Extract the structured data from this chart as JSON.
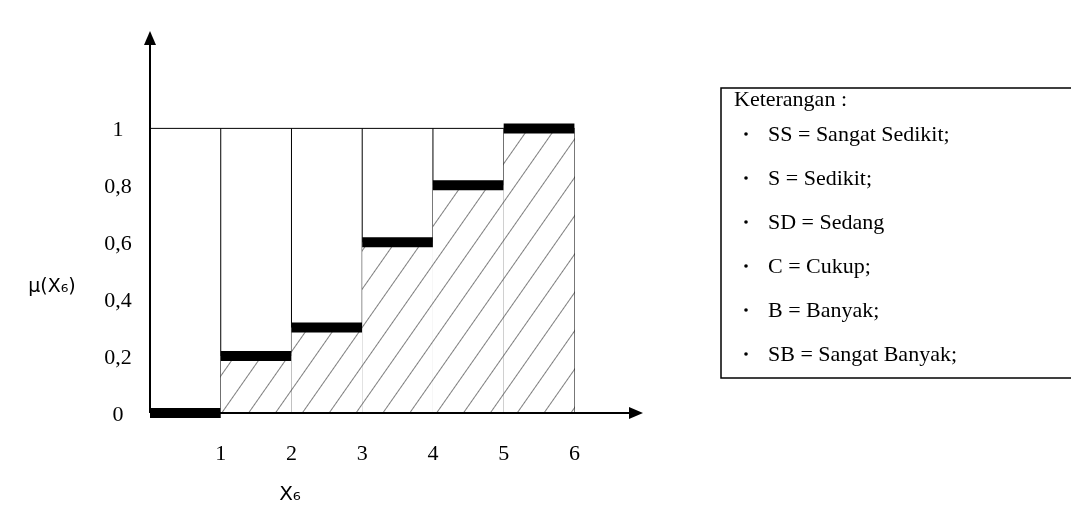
{
  "chart_data": {
    "type": "histogram",
    "xlabel": "X₆",
    "ylabel": "μ(X₆)",
    "bins": [
      0,
      1,
      2,
      3,
      4,
      5,
      6
    ],
    "values": [
      0,
      0.2,
      0.3,
      0.6,
      0.8,
      1
    ],
    "color": "#000000",
    "xlim": [
      0,
      6.8
    ],
    "xticks": [
      1,
      2,
      3,
      4,
      5,
      6
    ],
    "ylim": [
      0,
      1.3
    ],
    "yticks": [
      0,
      {
        "value": 0.2,
        "label": "0,2"
      },
      {
        "value": 0.4,
        "label": "0,4"
      },
      {
        "value": 0.6,
        "label": "0,6"
      },
      {
        "value": 0.8,
        "label": "0,8"
      },
      1
    ],
    "grid": "x",
    "ref_lines": [
      {
        "axis": "y",
        "value": 1
      }
    ],
    "annotations": [
      "Keterangan :",
      "SS = Sangat Sedikit;",
      "S = Sedikit;",
      "SD = Sedang",
      "C = Cukup;",
      "B = Banyak;",
      "SB = Sangat Banyak;"
    ]
  }
}
